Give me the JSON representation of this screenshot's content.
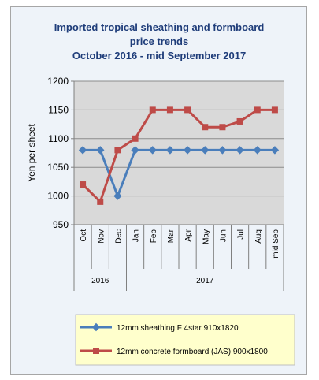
{
  "chart_data": {
    "type": "line",
    "title": [
      "Imported tropical sheathing and formboard",
      "price trends",
      "October 2016 - mid September 2017"
    ],
    "ylabel": "Yen per sheet",
    "ylim": [
      950,
      1200
    ],
    "yticks": [
      950,
      1000,
      1050,
      1100,
      1150,
      1200
    ],
    "categories": [
      "Oct",
      "Nov",
      "Dec",
      "Jan",
      "Feb",
      "Mar",
      "Apr",
      "May",
      "Jun",
      "Jul",
      "Aug",
      "mid Sep"
    ],
    "year_groups": [
      {
        "label": "2016",
        "count": 3
      },
      {
        "label": "2017",
        "count": 9
      }
    ],
    "grid": "horizontal",
    "legend_position": "bottom",
    "series": [
      {
        "name": "12mm sheathing F 4star 910x1820",
        "color": "#4a7ebb",
        "marker": "diamond",
        "values": [
          1080,
          1080,
          1000,
          1080,
          1080,
          1080,
          1080,
          1080,
          1080,
          1080,
          1080,
          1080
        ]
      },
      {
        "name": "12mm concrete formboard (JAS) 900x1800",
        "color": "#be4b48",
        "marker": "square",
        "values": [
          1020,
          990,
          1080,
          1100,
          1150,
          1150,
          1150,
          1120,
          1120,
          1130,
          1150,
          1150
        ]
      }
    ],
    "plot_bg": "#d9d9d9",
    "legend_bg": "#ffffcc"
  }
}
